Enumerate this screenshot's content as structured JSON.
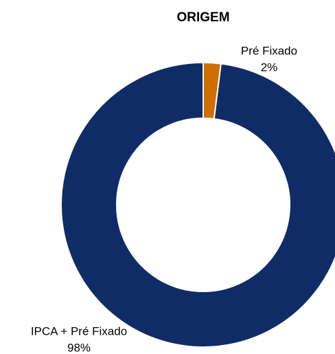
{
  "chart_data": {
    "type": "donut",
    "title": "ORIGEM",
    "categories": [
      "Pré Fixado",
      "IPCA + Pré Fixado"
    ],
    "values": [
      2,
      98
    ],
    "value_labels": [
      "2%",
      "98%"
    ],
    "colors": [
      "#d06f00",
      "#0f2c67"
    ]
  }
}
